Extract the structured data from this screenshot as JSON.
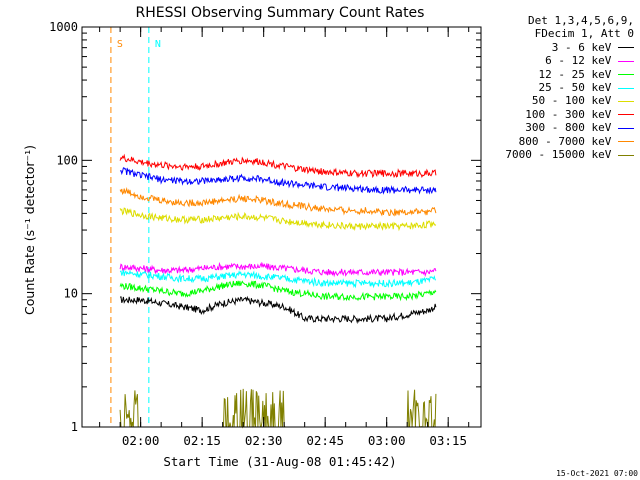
{
  "chart_data": {
    "type": "line",
    "title": "RHESSI Observing Summary Count Rates",
    "xlabel": "Start Time (31-Aug-08 01:45:42)",
    "ylabel": "Count Rate (s⁻¹ detector⁻¹)",
    "y_scale": "log",
    "ylim": [
      1,
      1000
    ],
    "y_ticks": [
      "1",
      "10",
      "100",
      "1000"
    ],
    "xlim": [
      "01:45:42",
      "03:23:00"
    ],
    "x_ticks": [
      "02:00",
      "02:15",
      "02:30",
      "02:45",
      "03:00",
      "03:15"
    ],
    "legend_header": [
      "Det 1,3,4,5,6,9,",
      "FDecim 1, Att 0"
    ],
    "legend_position": "right",
    "series": [
      {
        "name": "3 - 6 keV",
        "color": "#000000",
        "x": [
          "01:55",
          "02:00",
          "02:05",
          "02:10",
          "02:15",
          "02:20",
          "02:25",
          "02:30",
          "02:35",
          "02:40",
          "02:45",
          "02:50",
          "02:55",
          "03:00",
          "03:05",
          "03:10",
          "03:12"
        ],
        "values": [
          9,
          9,
          8.5,
          8,
          7.5,
          8.5,
          9,
          8.5,
          8,
          6.5,
          6.5,
          6.5,
          6.5,
          6.5,
          7,
          7.5,
          8
        ]
      },
      {
        "name": "6 - 12 keV",
        "color": "#ff00ff",
        "x": [
          "01:55",
          "02:00",
          "02:05",
          "02:10",
          "02:15",
          "02:20",
          "02:25",
          "02:30",
          "02:35",
          "02:40",
          "02:45",
          "02:50",
          "02:55",
          "03:00",
          "03:05",
          "03:10",
          "03:12"
        ],
        "values": [
          16,
          15.5,
          15,
          15,
          15.5,
          16,
          16,
          16,
          15.5,
          15,
          14.5,
          14.5,
          14.5,
          14.5,
          14.5,
          14.5,
          15
        ]
      },
      {
        "name": "12 - 25 keV",
        "color": "#00ff00",
        "x": [
          "01:55",
          "02:00",
          "02:05",
          "02:10",
          "02:15",
          "02:20",
          "02:25",
          "02:30",
          "02:35",
          "02:40",
          "02:45",
          "02:50",
          "02:55",
          "03:00",
          "03:05",
          "03:10",
          "03:12"
        ],
        "values": [
          11.5,
          11,
          10.5,
          10,
          10.5,
          11.5,
          12,
          11.5,
          10.5,
          10,
          9.5,
          9.5,
          9.5,
          9.5,
          9.5,
          10,
          10.5
        ]
      },
      {
        "name": "25 - 50 keV",
        "color": "#00ffff",
        "x": [
          "01:55",
          "02:00",
          "02:05",
          "02:10",
          "02:15",
          "02:20",
          "02:25",
          "02:30",
          "02:35",
          "02:40",
          "02:45",
          "02:50",
          "02:55",
          "03:00",
          "03:05",
          "03:10",
          "03:12"
        ],
        "values": [
          14.5,
          14,
          13.5,
          13,
          13,
          13.5,
          14,
          13.5,
          13,
          12.5,
          12,
          12,
          12,
          12,
          12,
          12.5,
          13
        ]
      },
      {
        "name": "50 - 100 keV",
        "color": "#dddd00",
        "x": [
          "01:55",
          "02:00",
          "02:05",
          "02:10",
          "02:15",
          "02:20",
          "02:25",
          "02:30",
          "02:35",
          "02:40",
          "02:45",
          "02:50",
          "02:55",
          "03:00",
          "03:05",
          "03:10",
          "03:12"
        ],
        "values": [
          42,
          39,
          37,
          36,
          36,
          37,
          38,
          37,
          35,
          34,
          33,
          32,
          32,
          32,
          32,
          33,
          34
        ]
      },
      {
        "name": "100 - 300 keV",
        "color": "#ff0000",
        "x": [
          "01:55",
          "02:00",
          "02:05",
          "02:10",
          "02:15",
          "02:20",
          "02:25",
          "02:30",
          "02:35",
          "02:40",
          "02:45",
          "02:50",
          "02:55",
          "03:00",
          "03:05",
          "03:10",
          "03:12"
        ],
        "values": [
          105,
          97,
          92,
          90,
          90,
          95,
          100,
          97,
          90,
          85,
          82,
          80,
          80,
          80,
          80,
          80,
          80
        ]
      },
      {
        "name": "300 - 800 keV",
        "color": "#0000ff",
        "x": [
          "01:55",
          "02:00",
          "02:05",
          "02:10",
          "02:15",
          "02:20",
          "02:25",
          "02:30",
          "02:35",
          "02:40",
          "02:45",
          "02:50",
          "02:55",
          "03:00",
          "03:05",
          "03:10",
          "03:12"
        ],
        "values": [
          85,
          77,
          72,
          70,
          70,
          72,
          74,
          72,
          68,
          65,
          63,
          62,
          61,
          60,
          60,
          60,
          60
        ]
      },
      {
        "name": "800 - 7000 keV",
        "color": "#ff8800",
        "x": [
          "01:55",
          "02:00",
          "02:05",
          "02:10",
          "02:15",
          "02:20",
          "02:25",
          "02:30",
          "02:35",
          "02:40",
          "02:45",
          "02:50",
          "02:55",
          "03:00",
          "03:05",
          "03:10",
          "03:12"
        ],
        "values": [
          60,
          54,
          50,
          48,
          48,
          50,
          52,
          50,
          47,
          45,
          43,
          42,
          42,
          41,
          41,
          41,
          42
        ]
      },
      {
        "name": "7000 - 15000 keV",
        "color": "#808000",
        "x": [
          "01:55",
          "02:00",
          "02:05",
          "02:10",
          "02:15",
          "02:20",
          "02:25",
          "02:30",
          "02:35",
          "02:40",
          "02:45",
          "02:50",
          "02:55",
          "03:00",
          "03:05",
          "03:10",
          "03:12"
        ],
        "values": [
          1.8,
          1,
          1,
          1,
          1,
          1.8,
          1.9,
          1.9,
          1.2,
          1,
          1,
          1,
          1,
          1,
          1.5,
          1.5,
          1.2
        ]
      }
    ],
    "markers": [
      {
        "label": "S",
        "color": "#ff8800",
        "time": "01:52:45"
      },
      {
        "label": "N",
        "color": "#00ffff",
        "time": "02:02:00"
      }
    ]
  },
  "footer": {
    "timestamp": "15-Oct-2021 07:00"
  }
}
